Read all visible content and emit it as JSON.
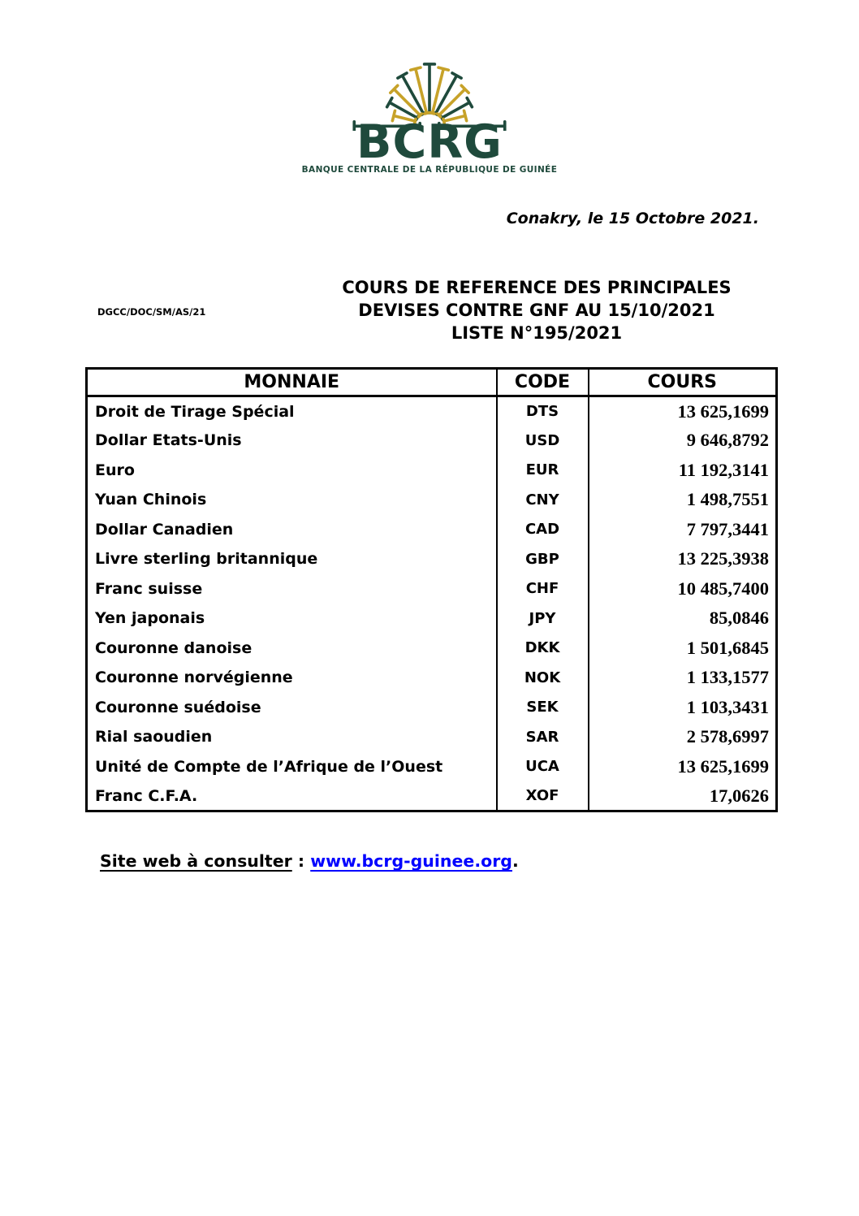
{
  "logo": {
    "text": "BCRG",
    "subtitle": "BANQUE CENTRALE DE LA RÉPUBLIQUE DE GUINÉE",
    "colors": {
      "green": "#1F4A3C",
      "gold": "#C7A229"
    }
  },
  "date_line": "Conakry, le 15 Octobre 2021.",
  "reference": "DGCC/DOC/SM/AS/21",
  "title": {
    "line1": "COURS DE REFERENCE DES PRINCIPALES",
    "line2": "DEVISES CONTRE GNF AU 15/10/2021",
    "line3": "LISTE N°195/2021"
  },
  "table": {
    "headers": [
      "MONNAIE",
      "CODE",
      "COURS"
    ],
    "rows": [
      {
        "monnaie": "Droit de Tirage Spécial",
        "code": "DTS",
        "cours": "13 625,1699"
      },
      {
        "monnaie": "Dollar Etats-Unis",
        "code": "USD",
        "cours": "9 646,8792"
      },
      {
        "monnaie": "Euro",
        "code": "EUR",
        "cours": "11 192,3141"
      },
      {
        "monnaie": "Yuan Chinois",
        "code": "CNY",
        "cours": "1 498,7551"
      },
      {
        "monnaie": "Dollar Canadien",
        "code": "CAD",
        "cours": "7 797,3441"
      },
      {
        "monnaie": "Livre sterling britannique",
        "code": "GBP",
        "cours": "13 225,3938"
      },
      {
        "monnaie": "Franc suisse",
        "code": "CHF",
        "cours": "10 485,7400"
      },
      {
        "monnaie": "Yen japonais",
        "code": "JPY",
        "cours": "85,0846"
      },
      {
        "monnaie": "Couronne danoise",
        "code": "DKK",
        "cours": "1 501,6845"
      },
      {
        "monnaie": "Couronne norvégienne",
        "code": "NOK",
        "cours": "1 133,1577"
      },
      {
        "monnaie": "Couronne suédoise",
        "code": "SEK",
        "cours": "1 103,3431"
      },
      {
        "monnaie": "Rial saoudien",
        "code": "SAR",
        "cours": "2 578,6997"
      },
      {
        "monnaie": "Unité de Compte de l’Afrique de l’Ouest",
        "code": "UCA",
        "cours": "13 625,1699"
      },
      {
        "monnaie": "Franc C.F.A.",
        "code": "XOF",
        "cours": "17,0626"
      }
    ]
  },
  "footer": {
    "label": "Site web à consulter",
    "separator": " : ",
    "link": "www.bcrg-guinee.org",
    "period": "."
  }
}
